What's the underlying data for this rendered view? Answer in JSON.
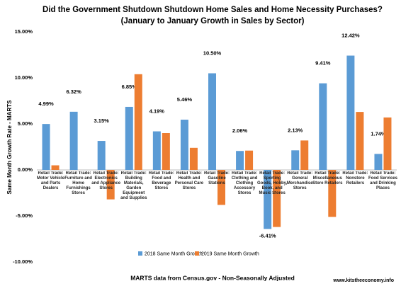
{
  "chart_data": {
    "type": "bar",
    "title": "Did the Government Shutdown Shutdown Home Sales and Home Necessity Purchases?",
    "subtitle": "(January to January Growth in Sales by Sector)",
    "y_label": "Same Month Growth Rate - MARTS",
    "footer": "MARTS data from Census.gov - Non-Seasonally Adjusted",
    "watermark": "www.kitstheeconomy.info",
    "categories": [
      "Retail Trade: Motor Vehicle and Parts Dealers",
      "Retail Trade: Furniture and Home Furnishings Stores",
      "Retail Trade: Electronics and Appliance Stores",
      "Retail Trade: Building Materials, Garden Equipment and Supplies",
      "Retail Trade: Food and Beverage Stores",
      "Retail Trade: Health and Personal Care Stores",
      "Retail Trade: Gasoline Stations",
      "Retail Trade: Clothing and Clothing Accessory Stores",
      "Retail Trade: Sporting Goods, Hobby, Book, and Music Stores",
      "Retail Trade: General Merchandise Stores",
      "Retail Trade: Miscellaneous Store Retailers",
      "Retail Trade: Nonstore Retailers",
      "Retail Trade: Food Services and Drinking Places"
    ],
    "series": [
      {
        "name": "2018 Same Month Growth",
        "color": "#5b9bd5",
        "values": [
          4.99,
          6.32,
          3.15,
          6.85,
          4.19,
          5.46,
          10.5,
          2.06,
          -6.41,
          2.13,
          9.41,
          12.42,
          1.74
        ],
        "value_labels": [
          "4.99%",
          "6.32%",
          "3.15%",
          "6.85%",
          "4.19%",
          "5.46%",
          "10.50%",
          "2.06%",
          "-6.41%",
          "2.13%",
          "9.41%",
          "12.42%",
          "1.74%"
        ]
      },
      {
        "name": "2019 Same Month Growth",
        "color": "#ed7d31",
        "values": [
          0.5,
          0.0,
          -3.2,
          10.4,
          4.0,
          2.4,
          -3.8,
          2.1,
          -6.2,
          3.2,
          -5.1,
          6.3,
          5.7
        ]
      }
    ],
    "ylim": [
      -10,
      15
    ],
    "yticks": [
      {
        "value": -10,
        "label": "-10.00%"
      },
      {
        "value": -5,
        "label": "-5.00%"
      },
      {
        "value": 0,
        "label": "0.00%"
      },
      {
        "value": 5,
        "label": "5.00%"
      },
      {
        "value": 10,
        "label": "10.00%"
      },
      {
        "value": 15,
        "label": "15.00%"
      }
    ],
    "grid": false,
    "legend": "bottom"
  }
}
